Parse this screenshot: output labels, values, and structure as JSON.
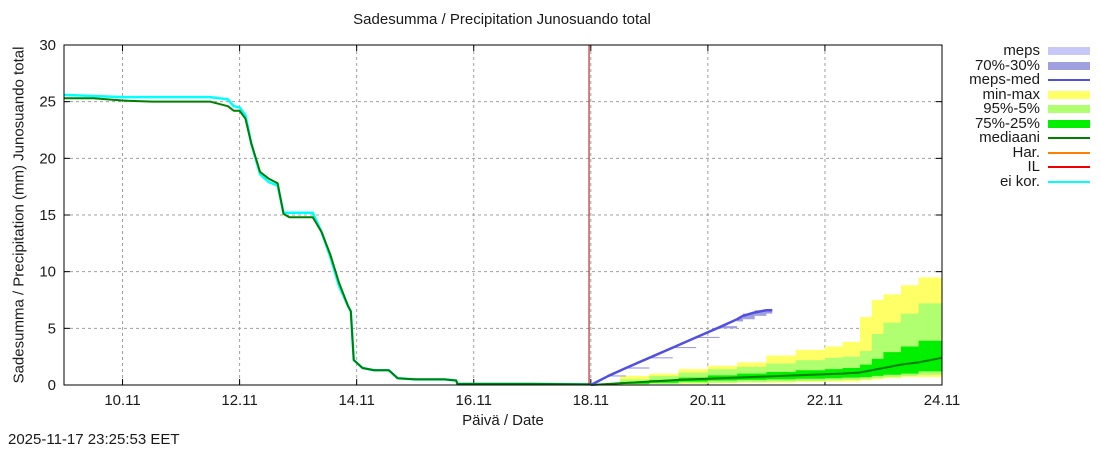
{
  "chart_data": {
    "type": "area",
    "title": "Sadesumma / Precipitation  Junosuando total",
    "xlabel": "Päivä / Date",
    "ylabel": "Sadesumma / Precipitation (mm)  Junosuando total",
    "ylim": [
      0,
      30
    ],
    "yticks": [
      "0",
      "5",
      "10",
      "15",
      "20",
      "25",
      "30"
    ],
    "xticks": [
      "10.11",
      "12.11",
      "14.11",
      "16.11",
      "18.11",
      "20.11",
      "22.11",
      "24.11"
    ],
    "xrange_days": [
      9.0,
      24.0
    ],
    "grid": true,
    "legend_position": "right",
    "analysis_time_line": 17.97,
    "observed": {
      "days": [
        9.0,
        9.5,
        10.0,
        10.5,
        11.0,
        11.5,
        11.8,
        11.9,
        12.0,
        12.1,
        12.2,
        12.35,
        12.5,
        12.65,
        12.75,
        12.85,
        13.25,
        13.4,
        13.55,
        13.7,
        13.85,
        13.9,
        13.95,
        14.1,
        14.3,
        14.55,
        14.7,
        15.0,
        15.5,
        15.7,
        15.72,
        17.0,
        18.0
      ],
      "mediaani": [
        25.3,
        25.3,
        25.1,
        25.0,
        25.0,
        25.0,
        24.6,
        24.2,
        24.2,
        23.5,
        21.3,
        18.8,
        18.2,
        17.8,
        15.1,
        14.8,
        14.8,
        13.5,
        11.5,
        9.0,
        7.0,
        6.5,
        2.2,
        1.5,
        1.3,
        1.3,
        0.6,
        0.5,
        0.5,
        0.4,
        0.1,
        0.1,
        0.05
      ],
      "ei_kor": [
        25.6,
        25.5,
        25.4,
        25.4,
        25.4,
        25.4,
        25.2,
        24.6,
        24.5,
        23.8,
        21.3,
        18.6,
        17.9,
        17.6,
        15.2,
        15.2,
        15.2,
        13.5,
        11.3,
        8.7,
        7.0,
        6.5,
        2.2,
        1.5,
        1.3,
        1.3,
        0.6,
        0.5,
        0.5,
        0.4,
        0.1,
        0.1,
        0.05
      ]
    },
    "forecast": {
      "days": [
        18.0,
        18.5,
        19.0,
        19.5,
        20.0,
        20.5,
        21.0,
        21.5,
        22.0,
        22.3,
        22.6,
        22.8,
        23.0,
        23.3,
        23.6,
        24.0
      ],
      "min_max": {
        "low": [
          0.0,
          0.05,
          0.1,
          0.1,
          0.15,
          0.2,
          0.2,
          0.25,
          0.3,
          0.3,
          0.4,
          0.5,
          0.6,
          0.7,
          0.7,
          0.8
        ],
        "high": [
          0.0,
          0.8,
          1.0,
          1.4,
          1.7,
          2.0,
          2.6,
          3.1,
          3.4,
          3.8,
          6.0,
          7.5,
          8.0,
          8.8,
          9.5,
          9.8
        ]
      },
      "p95_5": {
        "low": [
          0.0,
          0.05,
          0.1,
          0.15,
          0.2,
          0.25,
          0.3,
          0.35,
          0.4,
          0.45,
          0.5,
          0.6,
          0.7,
          0.8,
          0.9,
          1.0
        ],
        "high": [
          0.0,
          0.5,
          0.8,
          1.1,
          1.4,
          1.6,
          1.9,
          2.2,
          2.4,
          2.5,
          3.0,
          4.5,
          5.5,
          6.3,
          7.2,
          8.4
        ]
      },
      "p75_25": {
        "low": [
          0.0,
          0.1,
          0.2,
          0.3,
          0.4,
          0.45,
          0.5,
          0.55,
          0.6,
          0.65,
          0.7,
          0.8,
          0.9,
          1.0,
          1.2,
          1.4
        ],
        "high": [
          0.0,
          0.25,
          0.45,
          0.65,
          0.85,
          1.0,
          1.15,
          1.3,
          1.4,
          1.5,
          1.8,
          2.3,
          2.9,
          3.4,
          3.9,
          4.6
        ]
      },
      "mediaani": [
        0.0,
        0.15,
        0.3,
        0.45,
        0.55,
        0.65,
        0.75,
        0.85,
        0.95,
        1.0,
        1.1,
        1.3,
        1.5,
        1.8,
        2.0,
        2.4
      ]
    },
    "meps": {
      "days": [
        18.0,
        18.3,
        18.6,
        19.0,
        19.4,
        19.8,
        20.2,
        20.5,
        20.6,
        20.8,
        21.0,
        21.1
      ],
      "meps_med": [
        0.0,
        0.8,
        1.5,
        2.4,
        3.3,
        4.2,
        5.1,
        5.8,
        6.1,
        6.4,
        6.6,
        6.6
      ],
      "p70_30_low": [
        0.0,
        0.75,
        1.45,
        2.35,
        3.25,
        4.15,
        5.0,
        5.6,
        5.8,
        6.1,
        6.3,
        6.4
      ],
      "p70_30_high": [
        0.0,
        0.85,
        1.55,
        2.45,
        3.35,
        4.25,
        5.2,
        5.9,
        6.3,
        6.6,
        6.7,
        6.8
      ]
    },
    "series": [
      {
        "name": "meps",
        "color": "#c8c8f8",
        "kind": "band"
      },
      {
        "name": "70%-30%",
        "color": "#a0a0e0",
        "kind": "band"
      },
      {
        "name": "meps-med",
        "color": "#5050e0",
        "kind": "line"
      },
      {
        "name": "min-max",
        "color": "#ffff66",
        "kind": "band"
      },
      {
        "name": "95%-5%",
        "color": "#b0ff70",
        "kind": "band"
      },
      {
        "name": "75%-25%",
        "color": "#00f000",
        "kind": "band"
      },
      {
        "name": "mediaani",
        "color": "#007f00",
        "kind": "line"
      },
      {
        "name": "Har.",
        "color": "#ff8000",
        "kind": "line"
      },
      {
        "name": "IL",
        "color": "#ee0000",
        "kind": "line"
      },
      {
        "name": "ei kor.",
        "color": "#00ffff",
        "kind": "line"
      }
    ]
  },
  "footer": {
    "timestamp": "2025-11-17 23:25:53 EET"
  }
}
